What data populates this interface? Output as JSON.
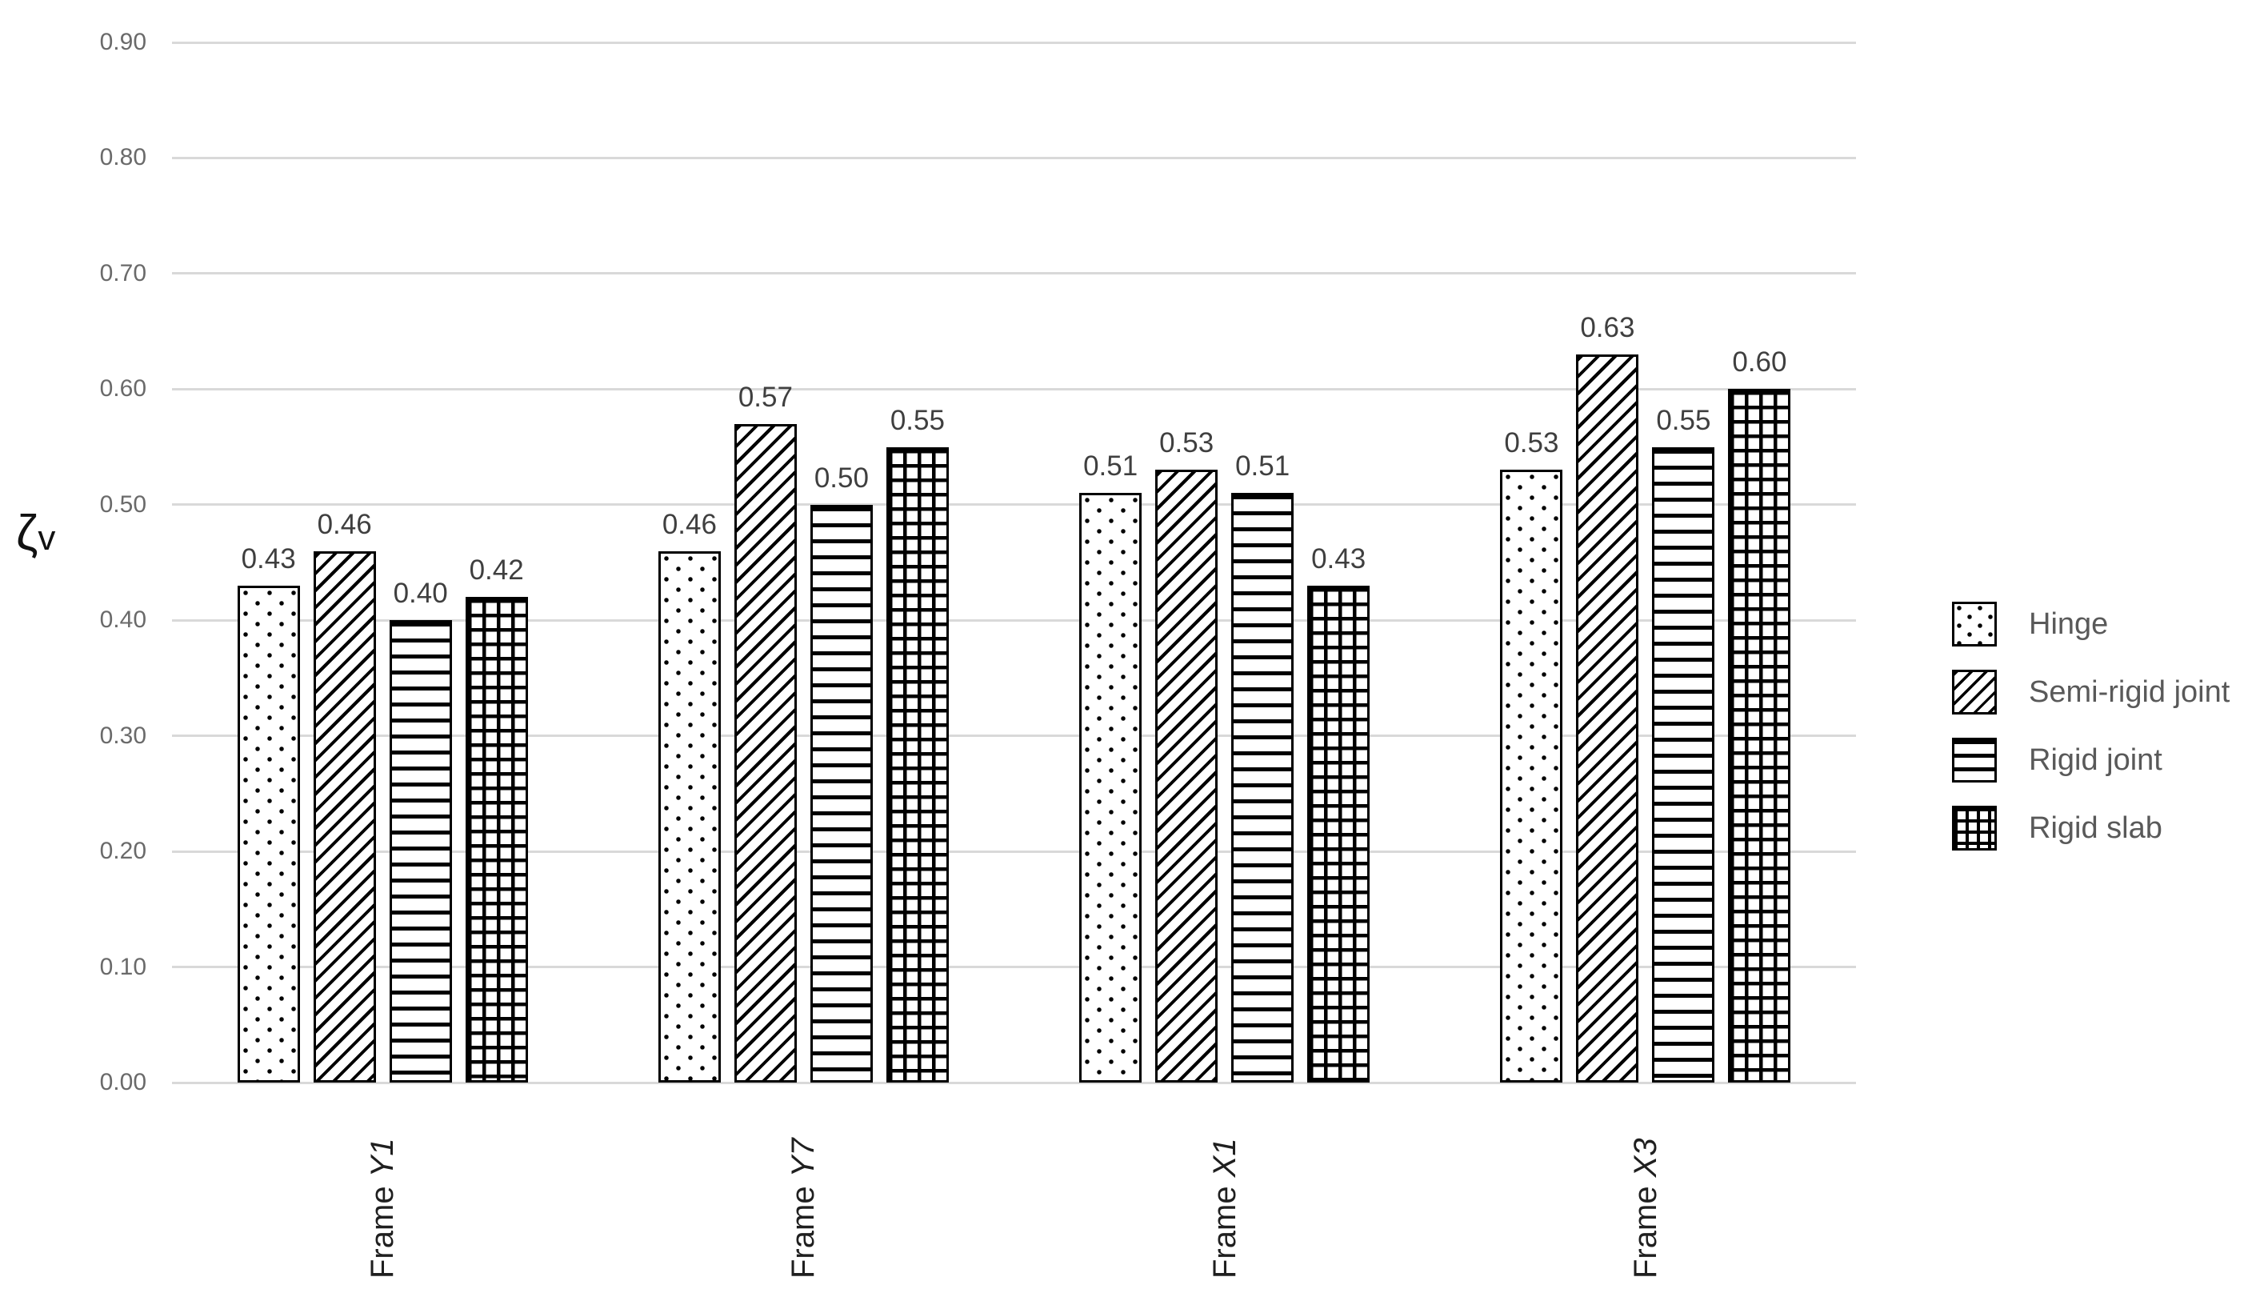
{
  "chart_data": {
    "type": "bar",
    "title": "",
    "xlabel": "",
    "ylabel": "ζv",
    "ylim": [
      0.0,
      0.9
    ],
    "ytick_step": 0.1,
    "ytick_labels": [
      "0.90",
      "0.80",
      "0.70",
      "0.60",
      "0.50",
      "0.40",
      "0.30",
      "0.20",
      "0.10",
      "0.00"
    ],
    "grid": true,
    "legend_position": "right",
    "bar_label_decimals": 2,
    "categories": [
      "Frame Y1",
      "Frame Y7",
      "Frame X1",
      "Frame X3"
    ],
    "series": [
      {
        "name": "Hinge",
        "pattern": "dots",
        "values": [
          0.43,
          0.46,
          0.51,
          0.53
        ]
      },
      {
        "name": "Semi-rigid joint",
        "pattern": "diagonal",
        "values": [
          0.46,
          0.57,
          0.53,
          0.63
        ]
      },
      {
        "name": "Rigid joint",
        "pattern": "hlines",
        "values": [
          0.4,
          0.5,
          0.51,
          0.55
        ]
      },
      {
        "name": "Rigid slab",
        "pattern": "grid",
        "values": [
          0.42,
          0.55,
          0.43,
          0.6
        ]
      }
    ]
  },
  "y_axis_title": {
    "zeta": "ζ",
    "sub": "v"
  },
  "x_categories": [
    {
      "prefix": "Frame",
      "code": "Y1"
    },
    {
      "prefix": "Frame",
      "code": "Y7"
    },
    {
      "prefix": "Frame",
      "code": "X1"
    },
    {
      "prefix": "Frame",
      "code": "X3"
    }
  ],
  "legend": {
    "items": [
      {
        "label": "Hinge",
        "pattern": "dots"
      },
      {
        "label": "Semi-rigid joint",
        "pattern": "diagonal"
      },
      {
        "label": "Rigid joint",
        "pattern": "hlines"
      },
      {
        "label": "Rigid slab",
        "pattern": "grid"
      }
    ]
  },
  "colors": {
    "gridline": "#d9d9d9",
    "tick_label": "#6a6a6a",
    "data_label": "#3f3f3f",
    "bar_border": "#000000",
    "legend_text": "#595959",
    "category_label": "#1f1f1f",
    "bg": "#ffffff"
  }
}
